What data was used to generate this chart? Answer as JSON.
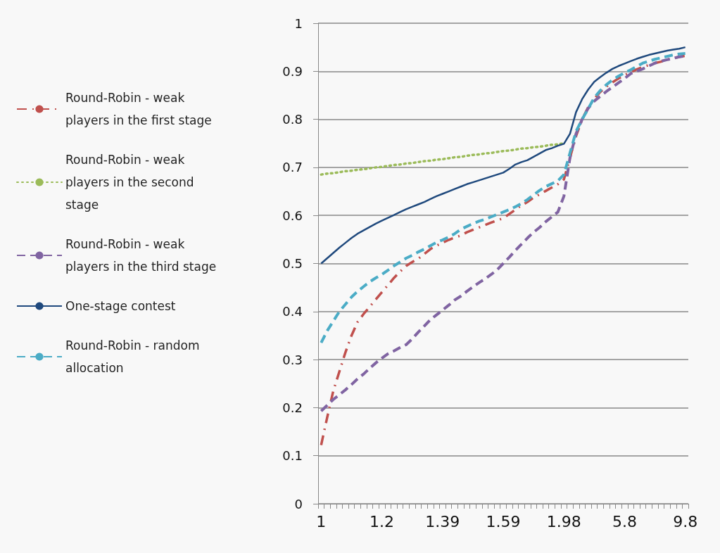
{
  "chart_data": {
    "type": "line",
    "categories": [
      "1",
      null,
      null,
      null,
      null,
      null,
      null,
      null,
      null,
      null,
      "1.2",
      null,
      null,
      null,
      null,
      null,
      null,
      null,
      null,
      null,
      "1.39",
      null,
      null,
      null,
      null,
      null,
      null,
      null,
      null,
      null,
      "1.59",
      null,
      null,
      null,
      null,
      null,
      null,
      null,
      null,
      null,
      "1.98",
      null,
      null,
      null,
      null,
      null,
      null,
      null,
      null,
      null,
      "5.8",
      null,
      null,
      null,
      null,
      null,
      null,
      null,
      null,
      null,
      "9.8"
    ],
    "series": [
      {
        "name": "Round-Robin - weak players in the first stage",
        "color": "#c0504d",
        "line_style": "dashdot",
        "values": [
          0.122,
          0.18,
          0.235,
          0.275,
          0.315,
          0.35,
          0.378,
          0.395,
          0.41,
          0.425,
          0.44,
          0.455,
          0.47,
          0.483,
          0.495,
          0.503,
          0.51,
          0.52,
          0.53,
          0.537,
          0.543,
          0.549,
          0.554,
          0.558,
          0.565,
          0.57,
          0.575,
          0.58,
          0.585,
          0.59,
          0.594,
          0.603,
          0.612,
          0.621,
          0.628,
          0.637,
          0.644,
          0.651,
          0.658,
          0.665,
          0.675,
          0.72,
          0.765,
          0.8,
          0.825,
          0.843,
          0.857,
          0.868,
          0.877,
          0.885,
          0.892,
          0.898,
          0.904,
          0.909,
          0.913,
          0.917,
          0.92,
          0.924,
          0.927,
          0.93,
          0.932
        ]
      },
      {
        "name": "Round-Robin - weak players in the second stage",
        "color": "#9bbb59",
        "line_style": "dotted",
        "values": [
          0.685,
          0.687,
          0.688,
          0.69,
          0.692,
          0.693,
          0.695,
          0.696,
          0.698,
          0.7,
          0.701,
          0.703,
          0.705,
          0.706,
          0.708,
          0.709,
          0.711,
          0.713,
          0.714,
          0.716,
          0.717,
          0.719,
          0.721,
          0.722,
          0.724,
          0.726,
          0.727,
          0.729,
          0.73,
          0.732,
          0.734,
          0.735,
          0.737,
          0.739,
          0.74,
          0.742,
          0.743,
          0.745,
          0.747,
          0.748,
          0.75,
          null,
          null,
          null,
          null,
          null,
          null,
          null,
          null,
          null,
          null,
          null,
          null,
          null,
          null,
          null,
          null,
          null,
          null,
          null,
          null
        ]
      },
      {
        "name": "Round-Robin - weak players in the third stage",
        "color": "#8064a2",
        "line_style": "dashed",
        "values": [
          0.193,
          0.205,
          0.217,
          0.227,
          0.237,
          0.248,
          0.26,
          0.27,
          0.282,
          0.293,
          0.303,
          0.312,
          0.318,
          0.325,
          0.331,
          0.343,
          0.357,
          0.37,
          0.383,
          0.393,
          0.403,
          0.413,
          0.424,
          0.432,
          0.442,
          0.451,
          0.46,
          0.468,
          0.477,
          0.487,
          0.5,
          0.513,
          0.527,
          0.54,
          0.553,
          0.565,
          0.575,
          0.587,
          0.597,
          0.607,
          0.64,
          0.72,
          0.77,
          0.8,
          0.823,
          0.838,
          0.848,
          0.858,
          0.867,
          0.876,
          0.885,
          0.895,
          0.9,
          0.905,
          0.911,
          0.917,
          0.921,
          0.924,
          0.927,
          0.93,
          0.932
        ]
      },
      {
        "name": "One-stage contest",
        "color": "#1f497d",
        "line_style": "solid",
        "values": [
          0.5,
          0.511,
          0.522,
          0.533,
          0.543,
          0.553,
          0.562,
          0.569,
          0.576,
          0.583,
          0.589,
          0.595,
          0.601,
          0.607,
          0.613,
          0.618,
          0.623,
          0.628,
          0.634,
          0.64,
          0.645,
          0.65,
          0.655,
          0.66,
          0.665,
          0.669,
          0.673,
          0.677,
          0.681,
          0.685,
          0.689,
          0.697,
          0.706,
          0.711,
          0.715,
          0.722,
          0.729,
          0.736,
          0.74,
          0.745,
          0.749,
          0.77,
          0.815,
          0.842,
          0.862,
          0.878,
          0.888,
          0.897,
          0.905,
          0.911,
          0.916,
          0.921,
          0.926,
          0.93,
          0.934,
          0.937,
          0.94,
          0.943,
          0.945,
          0.947,
          0.95
        ]
      },
      {
        "name": "Round-Robin - random allocation",
        "color": "#4bacc6",
        "line_style": "dashed",
        "values": [
          0.335,
          0.36,
          0.38,
          0.4,
          0.415,
          0.43,
          0.442,
          0.452,
          0.462,
          0.47,
          0.477,
          0.486,
          0.495,
          0.503,
          0.511,
          0.517,
          0.524,
          0.53,
          0.537,
          0.544,
          0.549,
          0.555,
          0.562,
          0.571,
          0.577,
          0.583,
          0.588,
          0.592,
          0.597,
          0.602,
          0.607,
          0.612,
          0.618,
          0.625,
          0.633,
          0.643,
          0.652,
          0.66,
          0.666,
          0.672,
          0.685,
          0.73,
          0.775,
          0.8,
          0.822,
          0.845,
          0.86,
          0.872,
          0.882,
          0.89,
          0.897,
          0.903,
          0.91,
          0.917,
          0.921,
          0.925,
          0.928,
          0.931,
          0.934,
          0.936,
          0.937
        ]
      }
    ],
    "ylim": [
      0,
      1
    ],
    "yticks": [
      0,
      0.1,
      0.2,
      0.3,
      0.4,
      0.5,
      0.6,
      0.7,
      0.8,
      0.9,
      1
    ],
    "grid": "y",
    "legend": "left",
    "marker": "none"
  }
}
